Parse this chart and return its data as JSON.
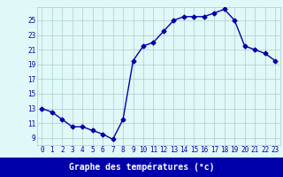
{
  "hours": [
    0,
    1,
    2,
    3,
    4,
    5,
    6,
    7,
    8,
    9,
    10,
    11,
    12,
    13,
    14,
    15,
    16,
    17,
    18,
    19,
    20,
    21,
    22,
    23
  ],
  "temperatures": [
    13.0,
    12.5,
    11.5,
    10.5,
    10.5,
    10.0,
    9.5,
    8.8,
    11.5,
    19.5,
    21.5,
    22.0,
    23.5,
    25.0,
    25.5,
    25.5,
    25.5,
    26.0,
    26.5,
    25.0,
    21.5,
    21.0,
    20.5,
    19.5
  ],
  "line_color": "#0000aa",
  "marker": "D",
  "marker_size": 2.5,
  "bg_color": "#e0f8f8",
  "grid_color": "#aacccc",
  "xlabel": "Graphe des températures (°c)",
  "xlabel_bg": "#0000aa",
  "tick_color": "#0000aa",
  "ylim": [
    8.0,
    26.8
  ],
  "yticks": [
    9,
    11,
    13,
    15,
    17,
    19,
    21,
    23,
    25
  ],
  "xlim": [
    -0.5,
    23.5
  ],
  "xticks": [
    0,
    1,
    2,
    3,
    4,
    5,
    6,
    7,
    8,
    9,
    10,
    11,
    12,
    13,
    14,
    15,
    16,
    17,
    18,
    19,
    20,
    21,
    22,
    23
  ],
  "line_width": 1.0,
  "tick_fontsize": 5.5,
  "xlabel_fontsize": 7.0
}
